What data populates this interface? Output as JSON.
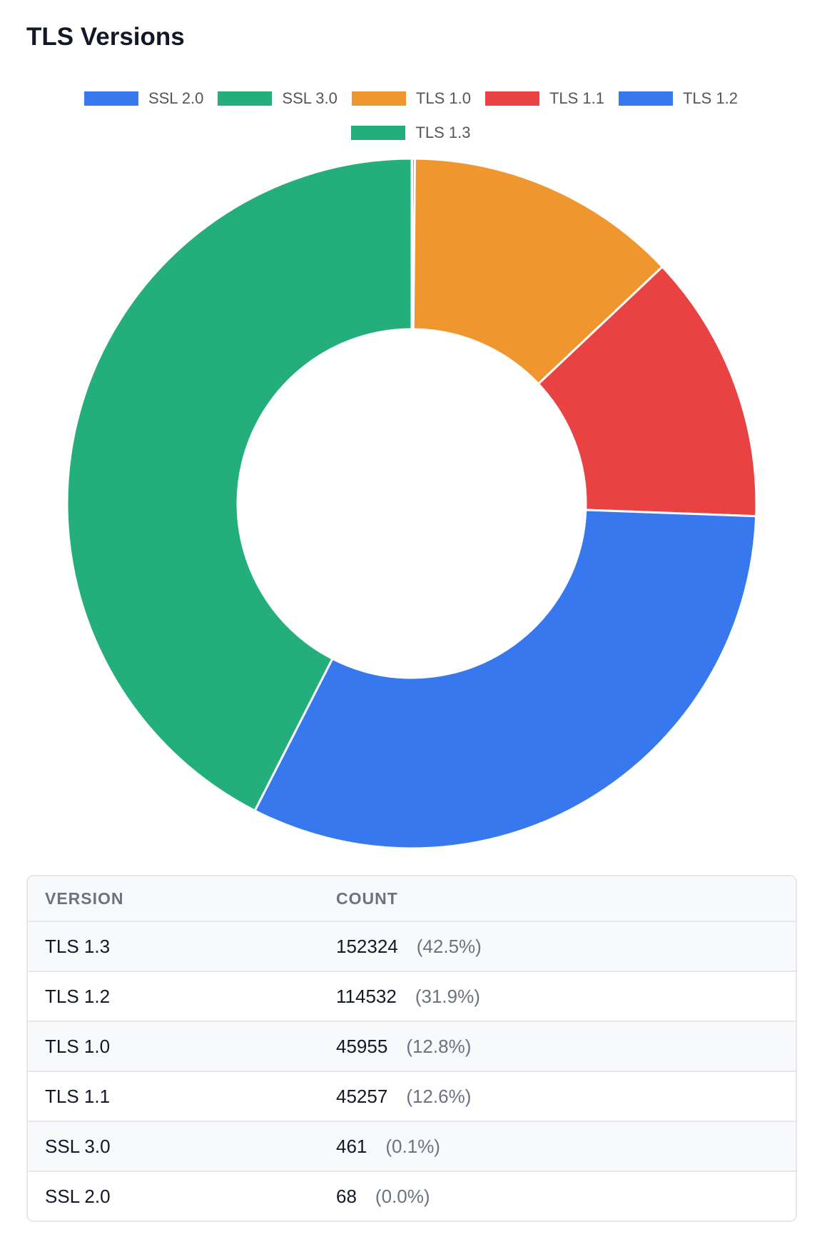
{
  "chart_data": {
    "type": "doughnut",
    "title": "TLS Versions",
    "legend_position": "top",
    "categories": [
      "SSL 2.0",
      "SSL 3.0",
      "TLS 1.0",
      "TLS 1.1",
      "TLS 1.2",
      "TLS 1.3"
    ],
    "values": [
      68,
      461,
      45955,
      45257,
      114532,
      152324
    ],
    "colors": [
      "#3878ee",
      "#24ae7c",
      "#f0962e",
      "#e84242",
      "#3878ee",
      "#24ae7c"
    ]
  },
  "table": {
    "headers": [
      "VERSION",
      "COUNT"
    ],
    "rows": [
      {
        "version": "TLS 1.3",
        "count": "152324",
        "pct": "(42.5%)"
      },
      {
        "version": "TLS 1.2",
        "count": "114532",
        "pct": "(31.9%)"
      },
      {
        "version": "TLS 1.0",
        "count": "45955",
        "pct": "(12.8%)"
      },
      {
        "version": "TLS 1.1",
        "count": "45257",
        "pct": "(12.6%)"
      },
      {
        "version": "SSL 3.0",
        "count": "461",
        "pct": "(0.1%)"
      },
      {
        "version": "SSL 2.0",
        "count": "68",
        "pct": "(0.0%)"
      }
    ]
  }
}
